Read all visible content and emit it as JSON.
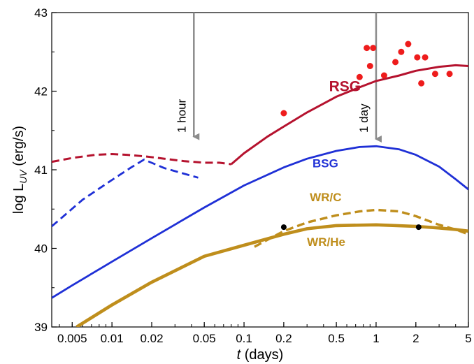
{
  "chart_data": {
    "type": "line",
    "title": "",
    "xlabel_italic": "t",
    "xlabel_rest": " (days)",
    "ylabel_main": "log L",
    "ylabel_sub": "UV",
    "ylabel_rest": " (erg/s)",
    "xscale": "log",
    "xlim": [
      0.0035,
      5
    ],
    "ylim": [
      39,
      43
    ],
    "xticks": [
      0.005,
      0.01,
      0.02,
      0.05,
      0.1,
      0.2,
      0.5,
      1,
      2,
      5
    ],
    "xtick_labels": [
      "0.005",
      "0.01",
      "0.02",
      "0.05",
      "0.1",
      "0.2",
      "0.5",
      "1",
      "2",
      "5"
    ],
    "yticks": [
      39,
      40,
      41,
      42,
      43
    ],
    "ytick_labels": [
      "39",
      "40",
      "41",
      "42",
      "43"
    ],
    "grid": false,
    "series": [
      {
        "name": "RSG",
        "color": "#b5122e",
        "segments": [
          {
            "style": "dashed",
            "points": [
              [
                0.0035,
                41.1
              ],
              [
                0.005,
                41.15
              ],
              [
                0.0075,
                41.19
              ],
              [
                0.01,
                41.2
              ],
              [
                0.013,
                41.19
              ],
              [
                0.018,
                41.17
              ],
              [
                0.025,
                41.14
              ],
              [
                0.035,
                41.11
              ],
              [
                0.05,
                41.09
              ],
              [
                0.065,
                41.09
              ],
              [
                0.08,
                41.07
              ]
            ]
          },
          {
            "style": "solid",
            "points": [
              [
                0.08,
                41.07
              ],
              [
                0.1,
                41.21
              ],
              [
                0.15,
                41.42
              ],
              [
                0.2,
                41.55
              ],
              [
                0.3,
                41.73
              ],
              [
                0.5,
                41.93
              ],
              [
                0.75,
                42.05
              ],
              [
                1,
                42.13
              ],
              [
                1.5,
                42.2
              ],
              [
                2,
                42.26
              ],
              [
                3,
                42.31
              ],
              [
                4,
                42.33
              ],
              [
                5,
                42.32
              ]
            ]
          }
        ]
      },
      {
        "name": "BSG",
        "color": "#1f30d6",
        "segments": [
          {
            "style": "dashed",
            "points": [
              [
                0.0035,
                40.28
              ],
              [
                0.006,
                40.62
              ],
              [
                0.01,
                40.87
              ],
              [
                0.014,
                41.03
              ],
              [
                0.0175,
                41.13
              ],
              [
                0.025,
                41.02
              ],
              [
                0.045,
                40.9
              ]
            ]
          },
          {
            "style": "solid",
            "points": [
              [
                0.0035,
                39.37
              ],
              [
                0.005,
                39.53
              ],
              [
                0.01,
                39.83
              ],
              [
                0.02,
                40.13
              ],
              [
                0.05,
                40.52
              ],
              [
                0.1,
                40.8
              ],
              [
                0.2,
                41.03
              ],
              [
                0.3,
                41.14
              ],
              [
                0.5,
                41.24
              ],
              [
                0.75,
                41.29
              ],
              [
                1,
                41.3
              ],
              [
                1.5,
                41.26
              ],
              [
                2,
                41.19
              ],
              [
                3,
                41.04
              ],
              [
                4,
                40.88
              ],
              [
                5,
                40.75
              ]
            ]
          }
        ]
      },
      {
        "name": "WR/C",
        "color": "#bf8e1c",
        "segments": [
          {
            "style": "dashed",
            "points": [
              [
                0.12,
                40.02
              ],
              [
                0.2,
                40.22
              ],
              [
                0.3,
                40.33
              ],
              [
                0.5,
                40.42
              ],
              [
                0.75,
                40.47
              ],
              [
                1,
                40.49
              ],
              [
                1.5,
                40.47
              ],
              [
                2,
                40.41
              ],
              [
                3,
                40.3
              ],
              [
                4,
                40.24
              ],
              [
                5,
                40.18
              ]
            ]
          }
        ]
      },
      {
        "name": "WR/He",
        "color": "#bf8e1c",
        "segments": [
          {
            "style": "solid",
            "points": [
              [
                0.0054,
                39.0
              ],
              [
                0.01,
                39.28
              ],
              [
                0.02,
                39.57
              ],
              [
                0.05,
                39.9
              ],
              [
                0.1,
                40.04
              ],
              [
                0.2,
                40.18
              ],
              [
                0.3,
                40.25
              ],
              [
                0.5,
                40.29
              ],
              [
                1,
                40.3
              ],
              [
                2,
                40.28
              ],
              [
                3,
                40.26
              ],
              [
                4,
                40.24
              ],
              [
                5,
                40.22
              ]
            ]
          }
        ]
      }
    ],
    "observations": {
      "color": "#ee1c1c",
      "points": [
        [
          0.2,
          41.72
        ],
        [
          0.75,
          42.18
        ],
        [
          0.85,
          42.55
        ],
        [
          0.9,
          42.32
        ],
        [
          0.95,
          42.55
        ],
        [
          1.15,
          42.2
        ],
        [
          1.4,
          42.37
        ],
        [
          1.55,
          42.5
        ],
        [
          1.75,
          42.6
        ],
        [
          2.05,
          42.43
        ],
        [
          2.2,
          42.1
        ],
        [
          2.35,
          42.43
        ],
        [
          2.8,
          42.22
        ],
        [
          3.6,
          42.22
        ]
      ]
    },
    "markers": {
      "color": "#000000",
      "points": [
        [
          0.2,
          40.27
        ],
        [
          2.1,
          40.27
        ]
      ]
    },
    "annotations": [
      {
        "text": "1 hour",
        "x": 0.0417
      },
      {
        "text": "1 day",
        "x": 1
      }
    ],
    "arrow_color": "#8c8c8c"
  }
}
